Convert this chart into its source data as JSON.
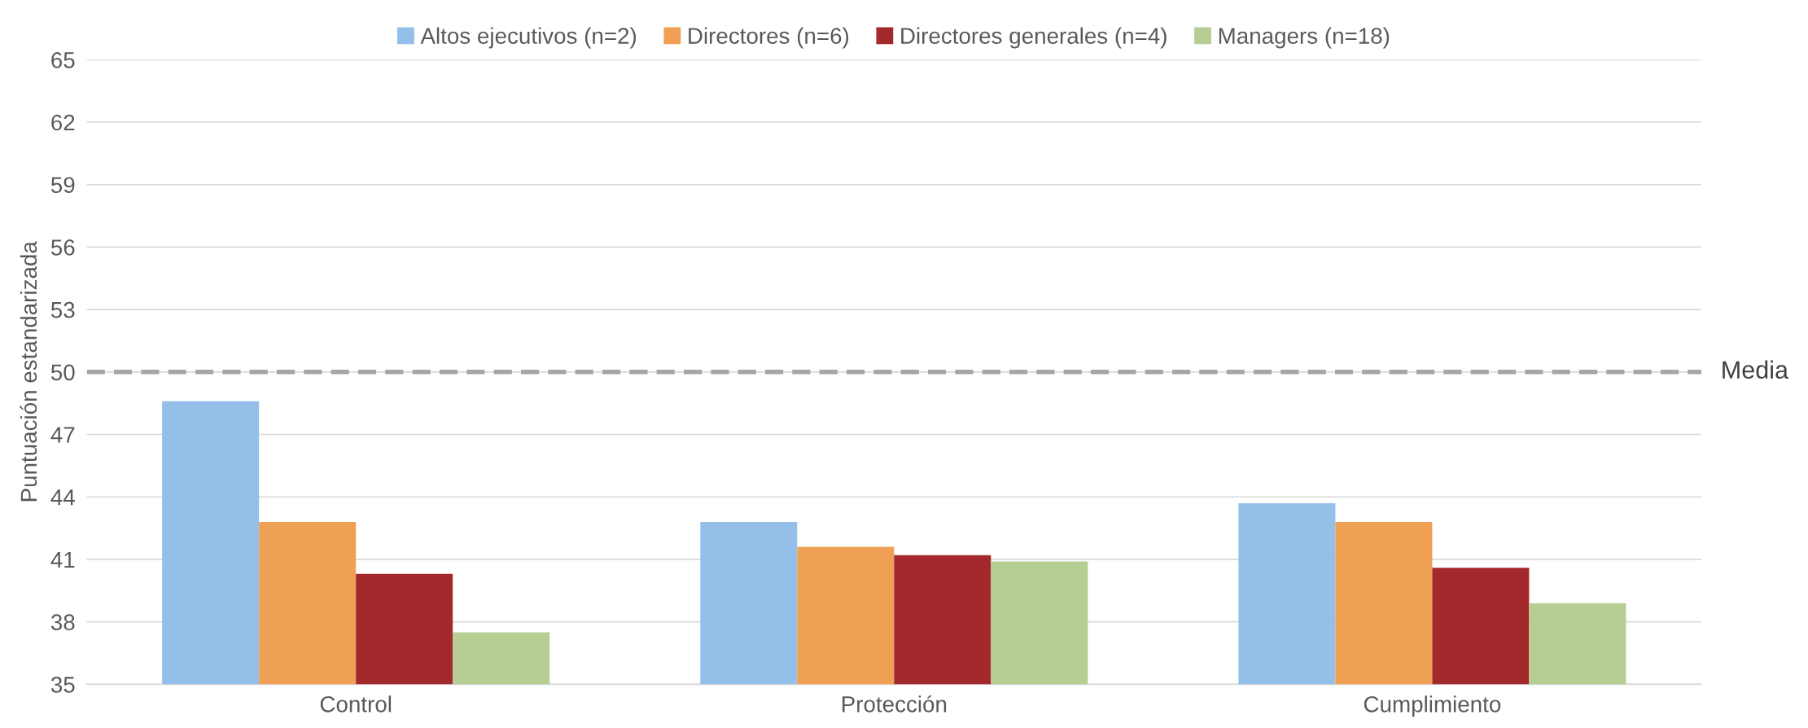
{
  "chart_data": {
    "type": "bar",
    "ylabel": "Puntuación estandarizada",
    "categories": [
      "Control",
      "Protección",
      "Cumplimiento"
    ],
    "series": [
      {
        "name": "Altos ejecutivos (n=2)",
        "color": "#93bfe8",
        "values": [
          48.6,
          42.8,
          43.7
        ]
      },
      {
        "name": "Directores (n=6)",
        "color": "#f0a055",
        "values": [
          42.8,
          41.6,
          42.8
        ]
      },
      {
        "name": "Directores generales (n=4)",
        "color": "#a4292c",
        "values": [
          40.3,
          41.2,
          40.6
        ]
      },
      {
        "name": "Managers (n=18)",
        "color": "#b6cd94",
        "values": [
          37.5,
          40.9,
          38.9
        ]
      }
    ],
    "ylim": [
      35,
      65
    ],
    "yticks": [
      35,
      38,
      41,
      44,
      47,
      50,
      53,
      56,
      59,
      62,
      65
    ],
    "grid": "y",
    "legend": "top",
    "ref_lines": [
      {
        "axis": "y",
        "value": 50,
        "label": "Media",
        "color": "#a6a6a6",
        "line_style": "dashed"
      }
    ]
  }
}
